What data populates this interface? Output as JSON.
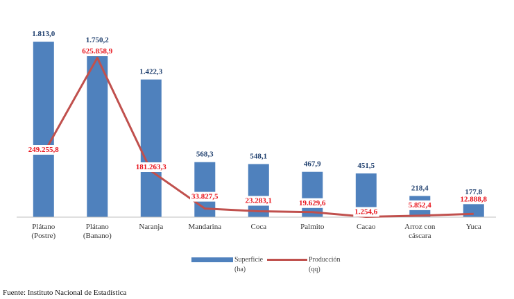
{
  "source_note": "Fuente: Instituto Nacional de Estadística",
  "colors": {
    "bar": "#4f81bd",
    "line": "#c0504d",
    "bar_label": "#1f3f6e",
    "line_label": "#e8141c"
  },
  "legend": {
    "bar_line1": "Superficie",
    "bar_line2": "(ha)",
    "line_line1": "Producción",
    "line_line2": "(qq)"
  },
  "chart_data": {
    "type": "bar",
    "title": "",
    "xlabel": "",
    "ylabel": "",
    "legend_position": "bottom",
    "grid": false,
    "categories": [
      [
        "Plátano",
        "(Postre)"
      ],
      [
        "Plátano",
        "(Banano)"
      ],
      [
        "Naranja"
      ],
      [
        "Mandarina"
      ],
      [
        "Coca"
      ],
      [
        "Palmito"
      ],
      [
        "Cacao"
      ],
      [
        "Arroz con",
        "cáscara"
      ],
      [
        "Yuca"
      ]
    ],
    "series": [
      {
        "name": "Superficie (ha)",
        "type": "bar",
        "axis": "left",
        "ylim": [
          0,
          2000
        ],
        "values": [
          1813.0,
          1750.2,
          1422.3,
          568.3,
          548.1,
          467.9,
          451.5,
          218.4,
          177.8
        ],
        "labels": [
          "1.813,0",
          "1.750,2",
          "1.422,3",
          "568,3",
          "548,1",
          "467,9",
          "451,5",
          "218,4",
          "177,8"
        ]
      },
      {
        "name": "Producción (qq)",
        "type": "line",
        "axis": "right",
        "ylim": [
          0,
          700000
        ],
        "values": [
          249255.8,
          625858.9,
          181263.3,
          33827.5,
          23283.1,
          19629.6,
          1254.6,
          5852.4,
          12888.8
        ],
        "labels": [
          "249.255,8",
          "625.858,9",
          "181.263,3",
          "33.827,5",
          "23.283,1",
          "19.629,6",
          "1.254,6",
          "5.852,4",
          "12.888,8"
        ]
      }
    ]
  }
}
